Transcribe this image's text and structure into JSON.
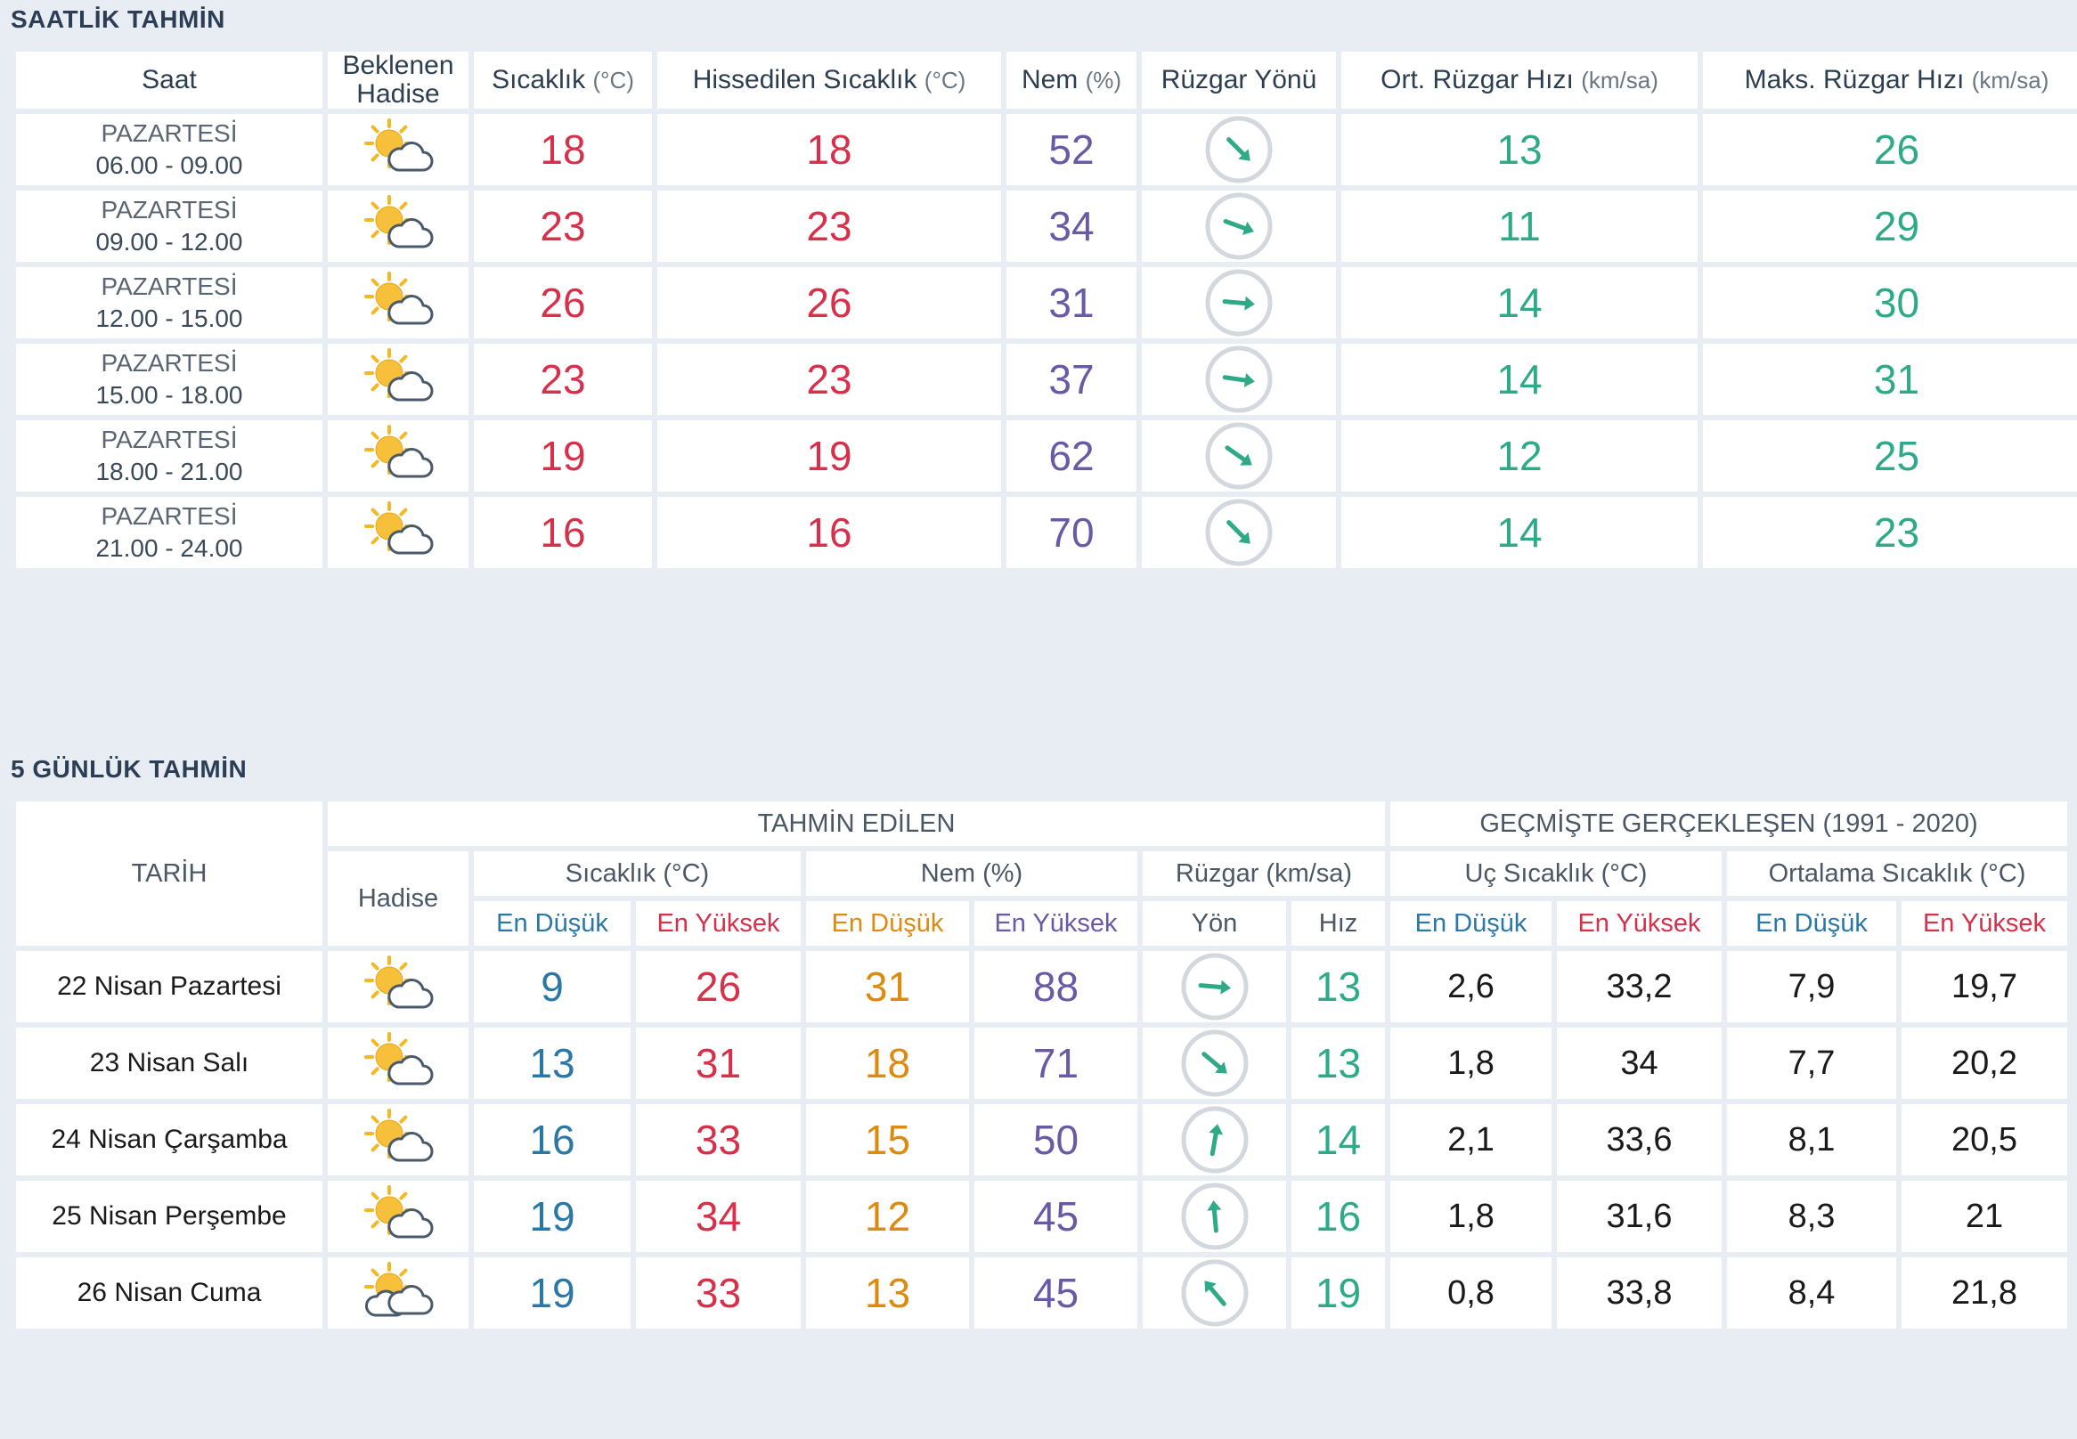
{
  "hourly": {
    "title": "SAATLİK TAHMİN",
    "headers": {
      "time": "Saat",
      "event_line1": "Beklenen",
      "event_line2": "Hadise",
      "temp": "Sıcaklık",
      "temp_unit": "(°C)",
      "feels": "Hissedilen Sıcaklık",
      "feels_unit": "(°C)",
      "humidity": "Nem",
      "humidity_unit": "(%)",
      "wind_dir": "Rüzgar Yönü",
      "wind_avg": "Ort. Rüzgar Hızı",
      "wind_avg_unit": "(km/sa)",
      "wind_max": "Maks. Rüzgar Hızı",
      "wind_max_unit": "(km/sa)"
    },
    "rows": [
      {
        "day": "PAZARTESİ",
        "range": "06.00 - 09.00",
        "icon": "sun-cloud-icon",
        "temp": "18",
        "feels": "18",
        "humidity": "52",
        "wind_angle": 45,
        "wind_avg": "13",
        "wind_max": "26"
      },
      {
        "day": "PAZARTESİ",
        "range": "09.00 - 12.00",
        "icon": "sun-cloud-icon",
        "temp": "23",
        "feels": "23",
        "humidity": "34",
        "wind_angle": 20,
        "wind_avg": "11",
        "wind_max": "29"
      },
      {
        "day": "PAZARTESİ",
        "range": "12.00 - 15.00",
        "icon": "sun-cloud-icon",
        "temp": "26",
        "feels": "26",
        "humidity": "31",
        "wind_angle": 5,
        "wind_avg": "14",
        "wind_max": "30"
      },
      {
        "day": "PAZARTESİ",
        "range": "15.00 - 18.00",
        "icon": "sun-cloud-icon",
        "temp": "23",
        "feels": "23",
        "humidity": "37",
        "wind_angle": 8,
        "wind_avg": "14",
        "wind_max": "31"
      },
      {
        "day": "PAZARTESİ",
        "range": "18.00 - 21.00",
        "icon": "sun-cloud-icon",
        "temp": "19",
        "feels": "19",
        "humidity": "62",
        "wind_angle": 35,
        "wind_avg": "12",
        "wind_max": "25"
      },
      {
        "day": "PAZARTESİ",
        "range": "21.00 - 24.00",
        "icon": "sun-cloud-icon",
        "temp": "16",
        "feels": "16",
        "humidity": "70",
        "wind_angle": 45,
        "wind_avg": "14",
        "wind_max": "23"
      }
    ]
  },
  "daily": {
    "title": "5 GÜNLÜK TAHMİN",
    "headers": {
      "date": "TARİH",
      "forecast_group": "TAHMİN EDİLEN",
      "history_group": "GEÇMİŞTE GERÇEKLEŞEN (1991 - 2020)",
      "event": "Hadise",
      "temp": "Sıcaklık (°C)",
      "humidity": "Nem (%)",
      "wind": "Rüzgar (km/sa)",
      "extreme_temp": "Uç Sıcaklık (°C)",
      "avg_temp": "Ortalama Sıcaklık (°C)",
      "min": "En Düşük",
      "max": "En Yüksek",
      "dir": "Yön",
      "speed": "Hız"
    },
    "rows": [
      {
        "date": "22 Nisan Pazartesi",
        "icon": "sun-cloud-icon",
        "t_min": "9",
        "t_max": "26",
        "h_min": "31",
        "h_max": "88",
        "wind_angle": 5,
        "wind_speed": "13",
        "ext_min": "2,6",
        "ext_max": "33,2",
        "avg_min": "7,9",
        "avg_max": "19,7"
      },
      {
        "date": "23 Nisan Salı",
        "icon": "sun-cloud-icon",
        "t_min": "13",
        "t_max": "31",
        "h_min": "18",
        "h_max": "71",
        "wind_angle": 40,
        "wind_speed": "13",
        "ext_min": "1,8",
        "ext_max": "34",
        "avg_min": "7,7",
        "avg_max": "20,2"
      },
      {
        "date": "24 Nisan Çarşamba",
        "icon": "sun-cloud-icon",
        "t_min": "16",
        "t_max": "33",
        "h_min": "15",
        "h_max": "50",
        "wind_angle": -80,
        "wind_speed": "14",
        "ext_min": "2,1",
        "ext_max": "33,6",
        "avg_min": "8,1",
        "avg_max": "20,5"
      },
      {
        "date": "25 Nisan Perşembe",
        "icon": "sun-cloud-icon",
        "t_min": "19",
        "t_max": "34",
        "h_min": "12",
        "h_max": "45",
        "wind_angle": -95,
        "wind_speed": "16",
        "ext_min": "1,8",
        "ext_max": "31,6",
        "avg_min": "8,3",
        "avg_max": "21"
      },
      {
        "date": "26 Nisan Cuma",
        "icon": "sun-cloud-double-icon",
        "t_min": "19",
        "t_max": "33",
        "h_min": "13",
        "h_max": "45",
        "wind_angle": -130,
        "wind_speed": "19",
        "ext_min": "0,8",
        "ext_max": "33,8",
        "avg_min": "8,4",
        "avg_max": "21,8"
      }
    ]
  }
}
